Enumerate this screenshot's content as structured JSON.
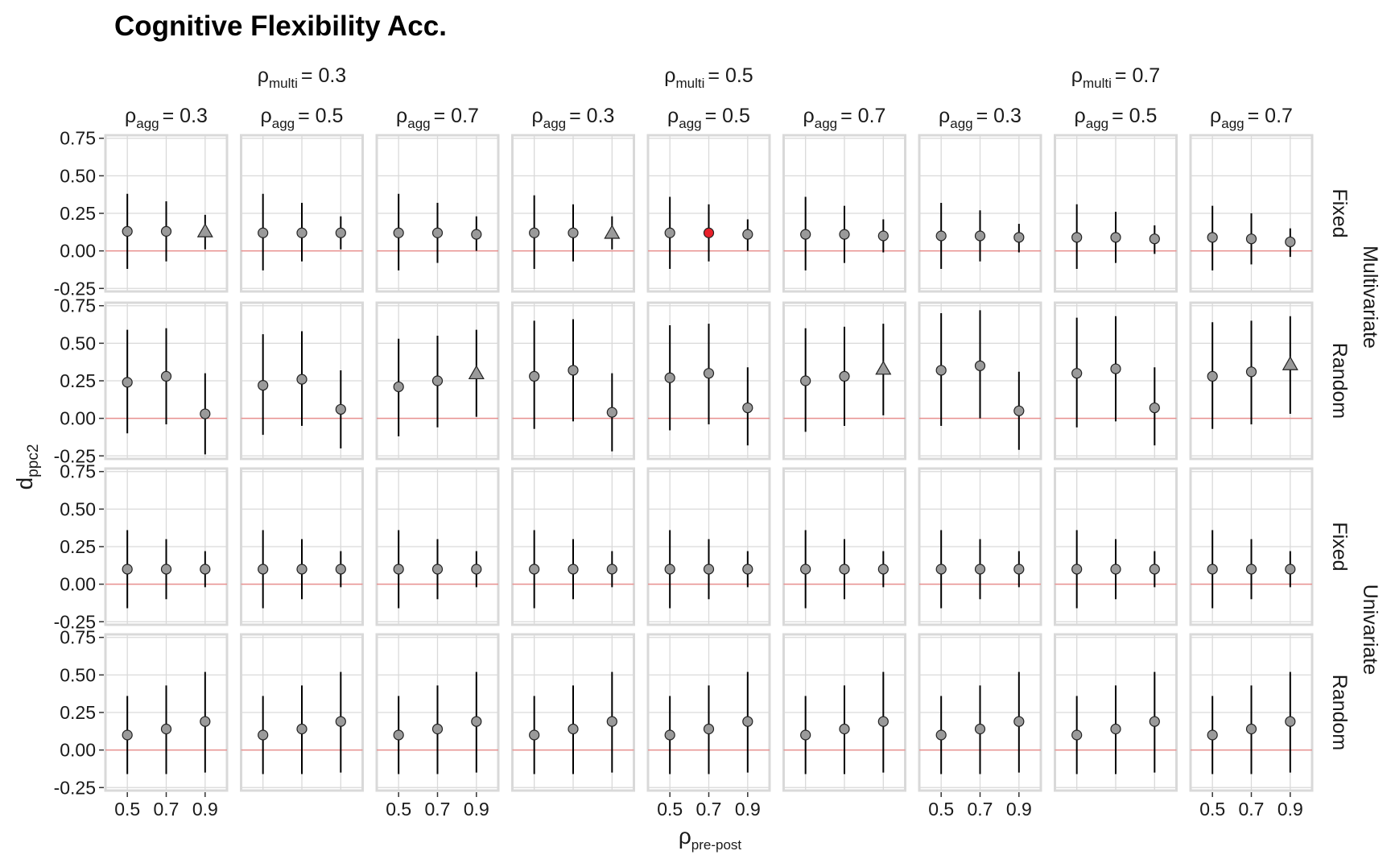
{
  "chart_data": {
    "type": "scatter",
    "title": "Cognitive Flexibility Acc.",
    "xlabel": {
      "main": "ρ",
      "sub": "pre-post"
    },
    "ylabel": {
      "main": "d",
      "sub": "ppc2"
    },
    "x_categories": [
      "0.5",
      "0.7",
      "0.9"
    ],
    "x_tick_labels_shown_on_columns": [
      0,
      2,
      4,
      6,
      8
    ],
    "y_ticks": [
      "0.75",
      "0.50",
      "0.25",
      "0.00",
      "-0.25"
    ],
    "y_tick_values": [
      0.75,
      0.5,
      0.25,
      0.0,
      -0.25
    ],
    "ylim": [
      -0.27,
      0.77
    ],
    "reference_line_y": 0,
    "grid": true,
    "colors": {
      "point_default": "#9a9a9a",
      "point_highlight": "#e8202a",
      "reference_line": "#e8908f",
      "panel_border": "#d9d9d9",
      "grid": "#d9d9d9"
    },
    "column_groups": [
      {
        "main": "ρ",
        "sub": "multi",
        "eq": "= 0.3"
      },
      {
        "main": "ρ",
        "sub": "multi",
        "eq": "= 0.5"
      },
      {
        "main": "ρ",
        "sub": "multi",
        "eq": "= 0.7"
      }
    ],
    "columns": [
      {
        "main": "ρ",
        "sub": "agg",
        "eq": "= 0.3"
      },
      {
        "main": "ρ",
        "sub": "agg",
        "eq": "= 0.5"
      },
      {
        "main": "ρ",
        "sub": "agg",
        "eq": "= 0.7"
      },
      {
        "main": "ρ",
        "sub": "agg",
        "eq": "= 0.3"
      },
      {
        "main": "ρ",
        "sub": "agg",
        "eq": "= 0.5"
      },
      {
        "main": "ρ",
        "sub": "agg",
        "eq": "= 0.7"
      },
      {
        "main": "ρ",
        "sub": "agg",
        "eq": "= 0.3"
      },
      {
        "main": "ρ",
        "sub": "agg",
        "eq": "= 0.5"
      },
      {
        "main": "ρ",
        "sub": "agg",
        "eq": "= 0.7"
      }
    ],
    "row_groups": [
      "Multivariate",
      "Univariate"
    ],
    "rows": [
      "Fixed",
      "Random",
      "Fixed",
      "Random"
    ],
    "panels": [
      [
        [
          {
            "y": 0.13,
            "lo": -0.12,
            "hi": 0.38,
            "shape": "circle"
          },
          {
            "y": 0.13,
            "lo": -0.07,
            "hi": 0.33,
            "shape": "circle"
          },
          {
            "y": 0.13,
            "lo": 0.01,
            "hi": 0.24,
            "shape": "triangle"
          }
        ],
        [
          {
            "y": 0.12,
            "lo": -0.13,
            "hi": 0.38,
            "shape": "circle"
          },
          {
            "y": 0.12,
            "lo": -0.07,
            "hi": 0.32,
            "shape": "circle"
          },
          {
            "y": 0.12,
            "lo": 0.01,
            "hi": 0.23,
            "shape": "circle"
          }
        ],
        [
          {
            "y": 0.12,
            "lo": -0.13,
            "hi": 0.38,
            "shape": "circle"
          },
          {
            "y": 0.12,
            "lo": -0.08,
            "hi": 0.32,
            "shape": "circle"
          },
          {
            "y": 0.11,
            "lo": 0.0,
            "hi": 0.23,
            "shape": "circle"
          }
        ],
        [
          {
            "y": 0.12,
            "lo": -0.12,
            "hi": 0.37,
            "shape": "circle"
          },
          {
            "y": 0.12,
            "lo": -0.07,
            "hi": 0.31,
            "shape": "circle"
          },
          {
            "y": 0.12,
            "lo": 0.01,
            "hi": 0.23,
            "shape": "triangle"
          }
        ],
        [
          {
            "y": 0.12,
            "lo": -0.12,
            "hi": 0.36,
            "shape": "circle"
          },
          {
            "y": 0.12,
            "lo": -0.07,
            "hi": 0.31,
            "shape": "circle",
            "highlight": true
          },
          {
            "y": 0.11,
            "lo": 0.0,
            "hi": 0.21,
            "shape": "circle"
          }
        ],
        [
          {
            "y": 0.11,
            "lo": -0.13,
            "hi": 0.36,
            "shape": "circle"
          },
          {
            "y": 0.11,
            "lo": -0.08,
            "hi": 0.3,
            "shape": "circle"
          },
          {
            "y": 0.1,
            "lo": -0.01,
            "hi": 0.21,
            "shape": "circle"
          }
        ],
        [
          {
            "y": 0.1,
            "lo": -0.12,
            "hi": 0.32,
            "shape": "circle"
          },
          {
            "y": 0.1,
            "lo": -0.07,
            "hi": 0.27,
            "shape": "circle"
          },
          {
            "y": 0.09,
            "lo": -0.01,
            "hi": 0.18,
            "shape": "circle"
          }
        ],
        [
          {
            "y": 0.09,
            "lo": -0.12,
            "hi": 0.31,
            "shape": "circle"
          },
          {
            "y": 0.09,
            "lo": -0.08,
            "hi": 0.26,
            "shape": "circle"
          },
          {
            "y": 0.08,
            "lo": -0.02,
            "hi": 0.17,
            "shape": "circle"
          }
        ],
        [
          {
            "y": 0.09,
            "lo": -0.13,
            "hi": 0.3,
            "shape": "circle"
          },
          {
            "y": 0.08,
            "lo": -0.09,
            "hi": 0.25,
            "shape": "circle"
          },
          {
            "y": 0.06,
            "lo": -0.04,
            "hi": 0.15,
            "shape": "circle"
          }
        ]
      ],
      [
        [
          {
            "y": 0.24,
            "lo": -0.1,
            "hi": 0.59,
            "shape": "circle"
          },
          {
            "y": 0.28,
            "lo": -0.04,
            "hi": 0.6,
            "shape": "circle"
          },
          {
            "y": 0.03,
            "lo": -0.24,
            "hi": 0.3,
            "shape": "circle"
          }
        ],
        [
          {
            "y": 0.22,
            "lo": -0.11,
            "hi": 0.56,
            "shape": "circle"
          },
          {
            "y": 0.26,
            "lo": -0.05,
            "hi": 0.58,
            "shape": "circle"
          },
          {
            "y": 0.06,
            "lo": -0.2,
            "hi": 0.32,
            "shape": "circle"
          }
        ],
        [
          {
            "y": 0.21,
            "lo": -0.12,
            "hi": 0.53,
            "shape": "circle"
          },
          {
            "y": 0.25,
            "lo": -0.06,
            "hi": 0.55,
            "shape": "circle"
          },
          {
            "y": 0.3,
            "lo": 0.01,
            "hi": 0.59,
            "shape": "triangle"
          }
        ],
        [
          {
            "y": 0.28,
            "lo": -0.07,
            "hi": 0.65,
            "shape": "circle"
          },
          {
            "y": 0.32,
            "lo": -0.02,
            "hi": 0.66,
            "shape": "circle"
          },
          {
            "y": 0.04,
            "lo": -0.22,
            "hi": 0.3,
            "shape": "circle"
          }
        ],
        [
          {
            "y": 0.27,
            "lo": -0.08,
            "hi": 0.62,
            "shape": "circle"
          },
          {
            "y": 0.3,
            "lo": -0.04,
            "hi": 0.63,
            "shape": "circle"
          },
          {
            "y": 0.07,
            "lo": -0.18,
            "hi": 0.34,
            "shape": "circle"
          }
        ],
        [
          {
            "y": 0.25,
            "lo": -0.09,
            "hi": 0.6,
            "shape": "circle"
          },
          {
            "y": 0.28,
            "lo": -0.05,
            "hi": 0.61,
            "shape": "circle"
          },
          {
            "y": 0.33,
            "lo": 0.02,
            "hi": 0.63,
            "shape": "triangle"
          }
        ],
        [
          {
            "y": 0.32,
            "lo": -0.05,
            "hi": 0.7,
            "shape": "circle"
          },
          {
            "y": 0.35,
            "lo": 0.0,
            "hi": 0.72,
            "shape": "circle"
          },
          {
            "y": 0.05,
            "lo": -0.21,
            "hi": 0.31,
            "shape": "circle"
          }
        ],
        [
          {
            "y": 0.3,
            "lo": -0.06,
            "hi": 0.67,
            "shape": "circle"
          },
          {
            "y": 0.33,
            "lo": -0.02,
            "hi": 0.68,
            "shape": "circle"
          },
          {
            "y": 0.07,
            "lo": -0.18,
            "hi": 0.34,
            "shape": "circle"
          }
        ],
        [
          {
            "y": 0.28,
            "lo": -0.07,
            "hi": 0.64,
            "shape": "circle"
          },
          {
            "y": 0.31,
            "lo": -0.04,
            "hi": 0.65,
            "shape": "circle"
          },
          {
            "y": 0.36,
            "lo": 0.03,
            "hi": 0.68,
            "shape": "triangle"
          }
        ]
      ],
      [
        [
          {
            "y": 0.1,
            "lo": -0.16,
            "hi": 0.36,
            "shape": "circle"
          },
          {
            "y": 0.1,
            "lo": -0.1,
            "hi": 0.3,
            "shape": "circle"
          },
          {
            "y": 0.1,
            "lo": -0.02,
            "hi": 0.22,
            "shape": "circle"
          }
        ],
        [
          {
            "y": 0.1,
            "lo": -0.16,
            "hi": 0.36,
            "shape": "circle"
          },
          {
            "y": 0.1,
            "lo": -0.1,
            "hi": 0.3,
            "shape": "circle"
          },
          {
            "y": 0.1,
            "lo": -0.02,
            "hi": 0.22,
            "shape": "circle"
          }
        ],
        [
          {
            "y": 0.1,
            "lo": -0.16,
            "hi": 0.36,
            "shape": "circle"
          },
          {
            "y": 0.1,
            "lo": -0.1,
            "hi": 0.3,
            "shape": "circle"
          },
          {
            "y": 0.1,
            "lo": -0.02,
            "hi": 0.22,
            "shape": "circle"
          }
        ],
        [
          {
            "y": 0.1,
            "lo": -0.16,
            "hi": 0.36,
            "shape": "circle"
          },
          {
            "y": 0.1,
            "lo": -0.1,
            "hi": 0.3,
            "shape": "circle"
          },
          {
            "y": 0.1,
            "lo": -0.02,
            "hi": 0.22,
            "shape": "circle"
          }
        ],
        [
          {
            "y": 0.1,
            "lo": -0.16,
            "hi": 0.36,
            "shape": "circle"
          },
          {
            "y": 0.1,
            "lo": -0.1,
            "hi": 0.3,
            "shape": "circle"
          },
          {
            "y": 0.1,
            "lo": -0.02,
            "hi": 0.22,
            "shape": "circle"
          }
        ],
        [
          {
            "y": 0.1,
            "lo": -0.16,
            "hi": 0.36,
            "shape": "circle"
          },
          {
            "y": 0.1,
            "lo": -0.1,
            "hi": 0.3,
            "shape": "circle"
          },
          {
            "y": 0.1,
            "lo": -0.02,
            "hi": 0.22,
            "shape": "circle"
          }
        ],
        [
          {
            "y": 0.1,
            "lo": -0.16,
            "hi": 0.36,
            "shape": "circle"
          },
          {
            "y": 0.1,
            "lo": -0.1,
            "hi": 0.3,
            "shape": "circle"
          },
          {
            "y": 0.1,
            "lo": -0.02,
            "hi": 0.22,
            "shape": "circle"
          }
        ],
        [
          {
            "y": 0.1,
            "lo": -0.16,
            "hi": 0.36,
            "shape": "circle"
          },
          {
            "y": 0.1,
            "lo": -0.1,
            "hi": 0.3,
            "shape": "circle"
          },
          {
            "y": 0.1,
            "lo": -0.02,
            "hi": 0.22,
            "shape": "circle"
          }
        ],
        [
          {
            "y": 0.1,
            "lo": -0.16,
            "hi": 0.36,
            "shape": "circle"
          },
          {
            "y": 0.1,
            "lo": -0.1,
            "hi": 0.3,
            "shape": "circle"
          },
          {
            "y": 0.1,
            "lo": -0.02,
            "hi": 0.22,
            "shape": "circle"
          }
        ]
      ],
      [
        [
          {
            "y": 0.1,
            "lo": -0.16,
            "hi": 0.36,
            "shape": "circle"
          },
          {
            "y": 0.14,
            "lo": -0.16,
            "hi": 0.43,
            "shape": "circle"
          },
          {
            "y": 0.19,
            "lo": -0.15,
            "hi": 0.52,
            "shape": "circle"
          }
        ],
        [
          {
            "y": 0.1,
            "lo": -0.16,
            "hi": 0.36,
            "shape": "circle"
          },
          {
            "y": 0.14,
            "lo": -0.16,
            "hi": 0.43,
            "shape": "circle"
          },
          {
            "y": 0.19,
            "lo": -0.15,
            "hi": 0.52,
            "shape": "circle"
          }
        ],
        [
          {
            "y": 0.1,
            "lo": -0.16,
            "hi": 0.36,
            "shape": "circle"
          },
          {
            "y": 0.14,
            "lo": -0.16,
            "hi": 0.43,
            "shape": "circle"
          },
          {
            "y": 0.19,
            "lo": -0.15,
            "hi": 0.52,
            "shape": "circle"
          }
        ],
        [
          {
            "y": 0.1,
            "lo": -0.16,
            "hi": 0.36,
            "shape": "circle"
          },
          {
            "y": 0.14,
            "lo": -0.16,
            "hi": 0.43,
            "shape": "circle"
          },
          {
            "y": 0.19,
            "lo": -0.15,
            "hi": 0.52,
            "shape": "circle"
          }
        ],
        [
          {
            "y": 0.1,
            "lo": -0.16,
            "hi": 0.36,
            "shape": "circle"
          },
          {
            "y": 0.14,
            "lo": -0.16,
            "hi": 0.43,
            "shape": "circle"
          },
          {
            "y": 0.19,
            "lo": -0.15,
            "hi": 0.52,
            "shape": "circle"
          }
        ],
        [
          {
            "y": 0.1,
            "lo": -0.16,
            "hi": 0.36,
            "shape": "circle"
          },
          {
            "y": 0.14,
            "lo": -0.16,
            "hi": 0.43,
            "shape": "circle"
          },
          {
            "y": 0.19,
            "lo": -0.15,
            "hi": 0.52,
            "shape": "circle"
          }
        ],
        [
          {
            "y": 0.1,
            "lo": -0.16,
            "hi": 0.36,
            "shape": "circle"
          },
          {
            "y": 0.14,
            "lo": -0.16,
            "hi": 0.43,
            "shape": "circle"
          },
          {
            "y": 0.19,
            "lo": -0.15,
            "hi": 0.52,
            "shape": "circle"
          }
        ],
        [
          {
            "y": 0.1,
            "lo": -0.16,
            "hi": 0.36,
            "shape": "circle"
          },
          {
            "y": 0.14,
            "lo": -0.16,
            "hi": 0.43,
            "shape": "circle"
          },
          {
            "y": 0.19,
            "lo": -0.15,
            "hi": 0.52,
            "shape": "circle"
          }
        ],
        [
          {
            "y": 0.1,
            "lo": -0.16,
            "hi": 0.36,
            "shape": "circle"
          },
          {
            "y": 0.14,
            "lo": -0.16,
            "hi": 0.43,
            "shape": "circle"
          },
          {
            "y": 0.19,
            "lo": -0.15,
            "hi": 0.52,
            "shape": "circle"
          }
        ]
      ]
    ]
  }
}
